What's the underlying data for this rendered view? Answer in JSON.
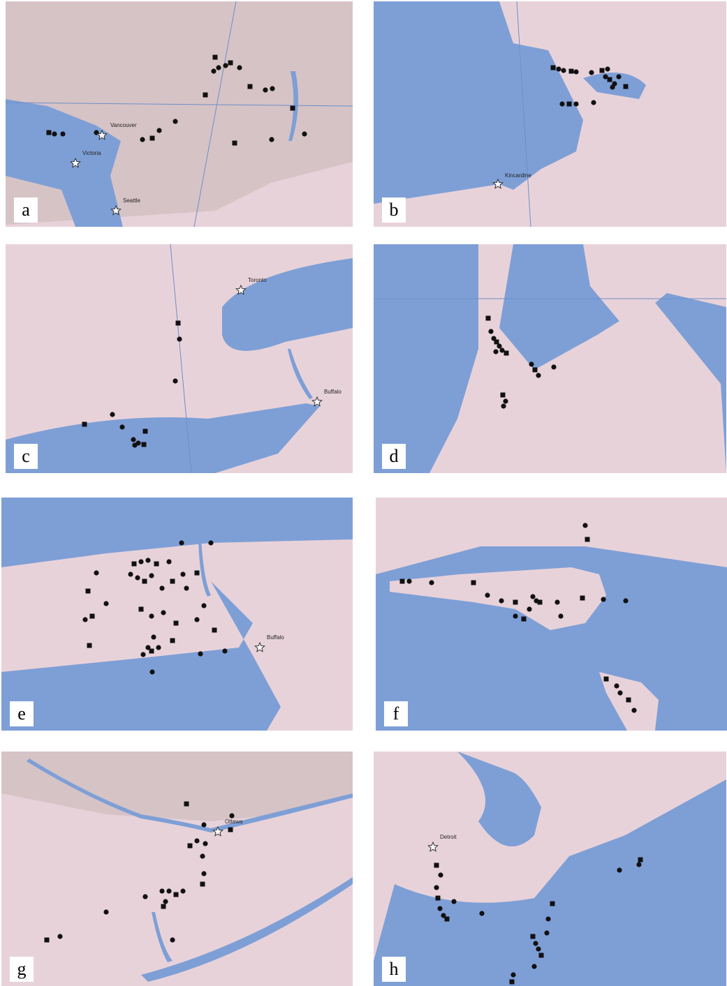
{
  "panels": [
    {
      "label": "a",
      "places": [
        "Vancouver",
        "Victoria",
        "Seattle"
      ]
    },
    {
      "label": "b",
      "places": [
        "Kincardine"
      ]
    },
    {
      "label": "c",
      "places": [
        "Toronto",
        "Buffalo"
      ]
    },
    {
      "label": "d"
    },
    {
      "label": "e",
      "places": [
        "Buffalo"
      ]
    },
    {
      "label": "f"
    },
    {
      "label": "g",
      "places": [
        "Ottawa"
      ]
    },
    {
      "label": "h",
      "places": [
        "Detroit"
      ]
    }
  ]
}
